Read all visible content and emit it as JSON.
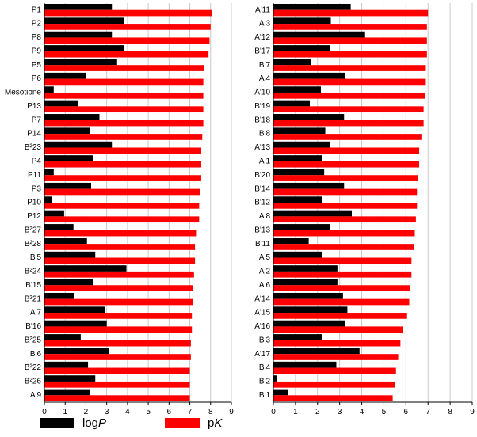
{
  "chart_data": [
    {
      "type": "bar",
      "orientation": "horizontal",
      "categories": [
        "P1",
        "P2",
        "P8",
        "P9",
        "P5",
        "P6",
        "Mesotione",
        "P13",
        "P7",
        "P14",
        "B²23",
        "P4",
        "P11",
        "P3",
        "P10",
        "P12",
        "B²27",
        "B²28",
        "B'5",
        "B²24",
        "B'15",
        "B²21",
        "A'7",
        "B'16",
        "B²25",
        "B'6",
        "B²22",
        "B²26",
        "A'9"
      ],
      "series": [
        {
          "name": "logP",
          "color": "#000000",
          "values": [
            3.25,
            3.85,
            3.25,
            3.85,
            3.5,
            2.0,
            0.45,
            1.6,
            2.65,
            2.2,
            3.25,
            2.35,
            0.45,
            2.25,
            0.35,
            0.95,
            1.4,
            2.05,
            2.45,
            3.95,
            2.35,
            1.45,
            2.9,
            3.0,
            1.75,
            3.1,
            2.1,
            2.45,
            2.2
          ]
        },
        {
          "name": "pKi",
          "color": "#ff0000",
          "values": [
            8.05,
            8.0,
            7.95,
            7.9,
            7.7,
            7.65,
            7.65,
            7.65,
            7.65,
            7.6,
            7.55,
            7.55,
            7.55,
            7.5,
            7.45,
            7.45,
            7.3,
            7.25,
            7.25,
            7.2,
            7.15,
            7.15,
            7.1,
            7.1,
            7.05,
            7.05,
            7.0,
            7.0,
            7.0
          ]
        }
      ],
      "xlim": [
        0,
        9
      ],
      "xticks": [
        "0",
        "1",
        "2",
        "3",
        "4",
        "5",
        "6",
        "7",
        "8",
        "9"
      ],
      "grid": "vertical",
      "title": "",
      "xlabel": "",
      "ylabel": ""
    },
    {
      "type": "bar",
      "orientation": "horizontal",
      "categories": [
        "A'11",
        "A'3",
        "A'12",
        "B'17",
        "B'7",
        "A'4",
        "A'10",
        "B'19",
        "B'18",
        "B'8",
        "A'13",
        "A'1",
        "B'20",
        "B'14",
        "B'12",
        "A'8",
        "B'13",
        "B'11",
        "A'5",
        "A'2",
        "A'6",
        "A'14",
        "A'15",
        "A'16",
        "B'3",
        "A'17",
        "B'4",
        "B'2",
        "B'1"
      ],
      "series": [
        {
          "name": "logP",
          "color": "#000000",
          "values": [
            3.5,
            2.6,
            4.15,
            2.55,
            1.7,
            3.25,
            2.15,
            1.65,
            3.2,
            2.35,
            2.55,
            2.2,
            2.3,
            3.2,
            2.2,
            3.55,
            2.55,
            1.6,
            2.2,
            2.9,
            2.9,
            3.15,
            3.35,
            3.25,
            2.2,
            3.9,
            2.85,
            0.15,
            0.65
          ]
        },
        {
          "name": "pKi",
          "color": "#ff0000",
          "values": [
            7.0,
            6.95,
            6.95,
            6.95,
            6.9,
            6.9,
            6.85,
            6.8,
            6.8,
            6.7,
            6.6,
            6.6,
            6.55,
            6.5,
            6.5,
            6.45,
            6.4,
            6.35,
            6.25,
            6.25,
            6.2,
            6.15,
            6.05,
            5.85,
            5.75,
            5.65,
            5.55,
            5.5,
            5.4
          ]
        }
      ],
      "xlim": [
        0,
        9
      ],
      "xticks": [
        "0",
        "1",
        "2",
        "3",
        "4",
        "5",
        "6",
        "7",
        "8",
        "9"
      ],
      "grid": "vertical",
      "title": "",
      "xlabel": "",
      "ylabel": ""
    }
  ],
  "legend": {
    "placement": "bottom-left",
    "items": [
      {
        "label_main": "log",
        "label_italic": "P",
        "label_sub": "",
        "color": "#000000"
      },
      {
        "label_main": "p",
        "label_italic": "K",
        "label_sub": "i",
        "color": "#ff0000"
      }
    ]
  }
}
